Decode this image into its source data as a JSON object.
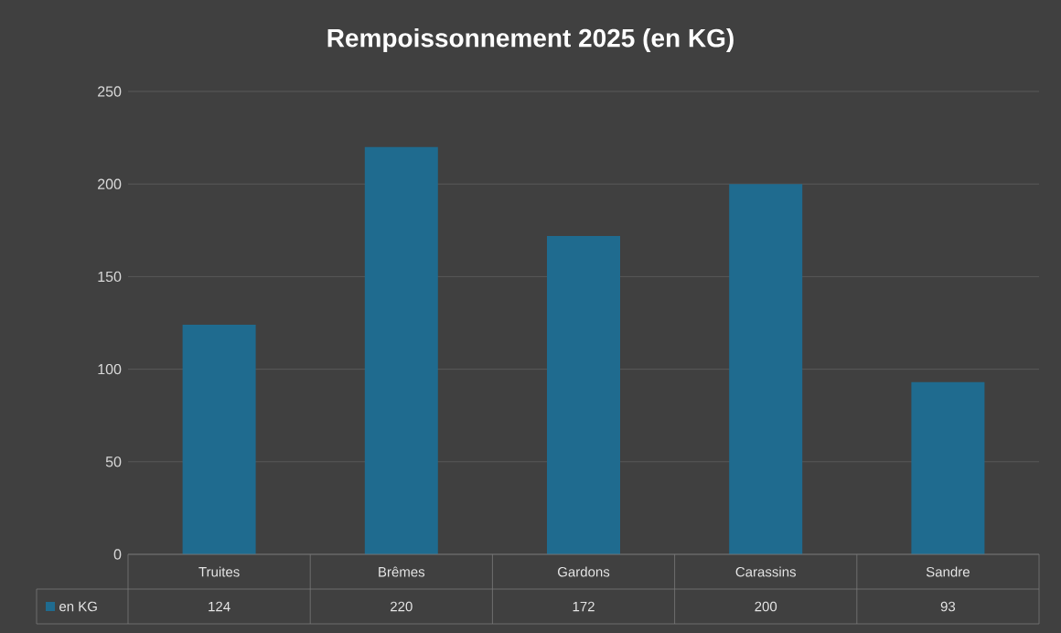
{
  "chart_data": {
    "type": "bar",
    "title": "Rempoissonnement 2025 (en KG)",
    "categories": [
      "Truites",
      "Brêmes",
      "Gardons",
      "Carassins",
      "Sandre"
    ],
    "series": [
      {
        "name": "en KG",
        "color": "#1f6b8f",
        "values": [
          124,
          220,
          172,
          200,
          93
        ]
      }
    ],
    "ylim": [
      0,
      250
    ],
    "yticks": [
      0,
      50,
      100,
      150,
      200,
      250
    ],
    "grid": "y",
    "data_labels": true,
    "legend": "bottom"
  }
}
